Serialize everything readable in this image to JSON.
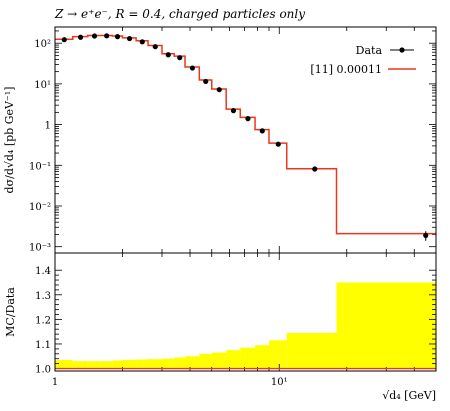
{
  "figure": {
    "title": "Z → e⁺e⁻, R = 0.4, charged particles only",
    "main_ylabel": "dσ/d√d₄ [pb GeV⁻¹]",
    "ratio_ylabel": "MC/Data",
    "xlabel": "√d₄ [GeV]",
    "colors": {
      "data": "#000000",
      "mc": "#e8391f",
      "band": "#ffff00"
    }
  },
  "chart_data": [
    {
      "type": "line",
      "panel": "main",
      "x_scale": "log",
      "y_scale": "log",
      "xlim": [
        1,
        50
      ],
      "ylim": [
        0.0007,
        250
      ],
      "x_ticks": [
        1,
        10
      ],
      "x_tick_labels": [
        "1",
        "10¹"
      ],
      "y_ticks": [
        0.001,
        0.01,
        0.1,
        1,
        10,
        100
      ],
      "y_tick_labels": [
        "10⁻³",
        "10⁻²",
        "10⁻¹",
        "1",
        "10¹",
        "10²"
      ],
      "legend_position": "top-right",
      "legend": [
        {
          "label": "Data",
          "kind": "points"
        },
        {
          "label": "[11] 0.00011",
          "kind": "line"
        }
      ],
      "bin_edges": [
        1.0,
        1.2,
        1.4,
        1.6,
        1.8,
        2.0,
        2.3,
        2.6,
        3.0,
        3.4,
        3.8,
        4.4,
        5.0,
        5.8,
        6.7,
        7.8,
        9.0,
        10.8,
        18.0,
        50.0
      ],
      "data": {
        "name": "Data",
        "x": [
          1.1,
          1.3,
          1.5,
          1.7,
          1.9,
          2.15,
          2.45,
          2.8,
          3.2,
          3.6,
          4.1,
          4.7,
          5.4,
          6.25,
          7.25,
          8.4,
          9.9,
          14.4,
          45.0
        ],
        "y": [
          122,
          140,
          150,
          152,
          145,
          130,
          108,
          82,
          52,
          44,
          24.5,
          11.5,
          7.2,
          2.2,
          1.4,
          0.7,
          0.33,
          0.081,
          0.0019
        ],
        "yerr": [
          0,
          0,
          0,
          0,
          0,
          0,
          0,
          0,
          0,
          0,
          0,
          0,
          0,
          0,
          0,
          0,
          0,
          0,
          0.0005
        ]
      },
      "mc": {
        "name": "[11] 0.00011",
        "y": [
          125,
          145,
          155,
          155,
          150,
          135,
          115,
          88,
          55,
          48,
          26,
          12.5,
          7.5,
          2.4,
          1.5,
          0.75,
          0.35,
          0.082,
          0.0021
        ]
      }
    },
    {
      "type": "area",
      "panel": "ratio",
      "x_scale": "log",
      "xlim": [
        1,
        50
      ],
      "ylim": [
        0.99,
        1.47
      ],
      "y_ticks": [
        1.0,
        1.1,
        1.2,
        1.3,
        1.4
      ],
      "y_tick_labels": [
        "1.0",
        "1.1",
        "1.2",
        "1.3",
        "1.4"
      ],
      "bin_edges": [
        1.0,
        1.2,
        1.4,
        1.6,
        1.8,
        2.0,
        2.3,
        2.6,
        3.0,
        3.4,
        3.8,
        4.4,
        5.0,
        5.8,
        6.7,
        7.8,
        9.0,
        10.8,
        18.0,
        50.0
      ],
      "band_lower": [
        1,
        1,
        1,
        1,
        1,
        1,
        1,
        1,
        1,
        1,
        1,
        1,
        1,
        1,
        1,
        1,
        1,
        1,
        1
      ],
      "band_upper": [
        1.035,
        1.03,
        1.03,
        1.03,
        1.033,
        1.035,
        1.037,
        1.038,
        1.04,
        1.045,
        1.05,
        1.06,
        1.065,
        1.075,
        1.085,
        1.095,
        1.115,
        1.145,
        1.35
      ]
    }
  ]
}
